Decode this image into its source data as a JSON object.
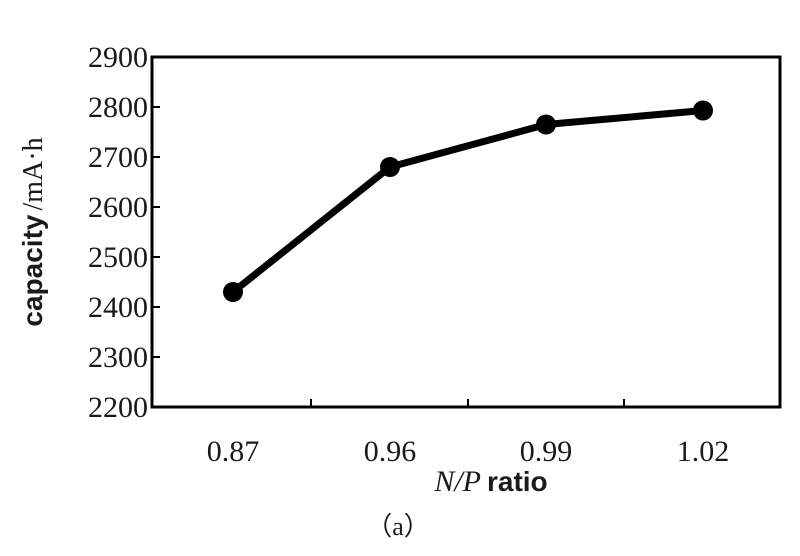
{
  "chart_data": {
    "type": "line",
    "categories": [
      "0.87",
      "0.96",
      "0.99",
      "1.02"
    ],
    "series": [
      {
        "values": [
          2430,
          2680,
          2765,
          2793
        ]
      }
    ],
    "ylim": [
      2200,
      2900
    ],
    "yticks": [
      "2200",
      "2300",
      "2400",
      "2500",
      "2600",
      "2700",
      "2800",
      "2900"
    ],
    "ylabel": {
      "bold": "capacity",
      "rest": "/mA·h"
    },
    "xlabel": {
      "italic": "N/P",
      "bold": "ratio"
    },
    "caption": "（a）",
    "grid": false,
    "line_color": "#000000"
  }
}
